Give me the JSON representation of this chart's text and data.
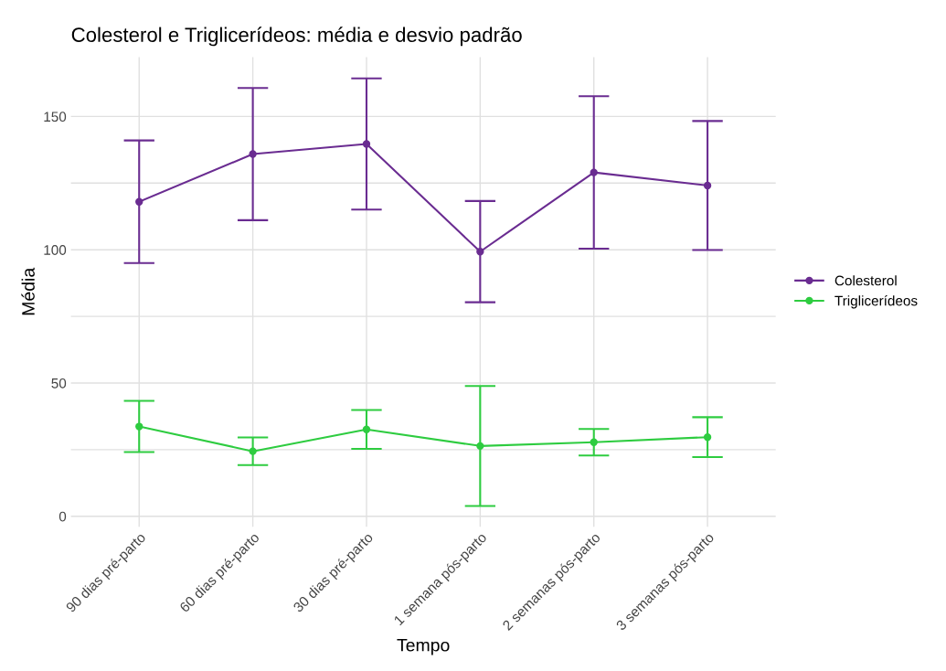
{
  "chart_data": {
    "type": "line",
    "title": "Colesterol e Triglicerídeos: média e desvio padrão",
    "xlabel": "Tempo",
    "ylabel": "Média",
    "categories": [
      "90 dias pré-parto",
      "60 dias pré-parto",
      "30 dias pré-parto",
      "1 semana pós-parto",
      "2 semanas pós-parto",
      "3 semanas pós-parto"
    ],
    "series": [
      {
        "name": "Colesterol",
        "color": "#6a2c91",
        "values": [
          118.0,
          135.9,
          139.7,
          99.3,
          129.0,
          124.1
        ],
        "errors": [
          23,
          24.8,
          24.6,
          19,
          28.6,
          24.2
        ]
      },
      {
        "name": "Triglicerídeos",
        "color": "#2ecc40",
        "values": [
          33.7,
          24.4,
          32.6,
          26.4,
          27.8,
          29.7
        ],
        "errors": [
          9.6,
          5.2,
          7.3,
          22.5,
          5,
          7.5
        ]
      }
    ],
    "ylim": [
      -3.9,
      172.3
    ],
    "yticks": [
      0,
      {
        "value": 25,
        "label": null
      },
      50,
      {
        "value": 75,
        "label": null
      },
      100,
      {
        "value": 125,
        "label": null
      },
      150
    ],
    "grid": true,
    "legend": "right",
    "marker": "circle",
    "line_style": "solid"
  }
}
